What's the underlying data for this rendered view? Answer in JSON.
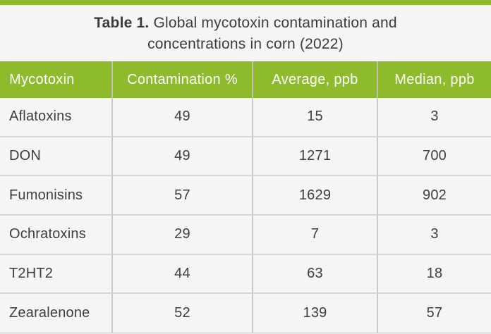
{
  "accent_color": "#8dbb2c",
  "title": {
    "prefix": "Table 1.",
    "line1_rest": " Global mycotoxin contamination and",
    "line2": "concentrations in corn (2022)"
  },
  "table": {
    "headers": [
      "Mycotoxin",
      "Contamination %",
      "Average, ppb",
      "Median, ppb"
    ],
    "rows": [
      {
        "name": "Aflatoxins",
        "contamination_pct": "49",
        "average_ppb": "15",
        "median_ppb": "3"
      },
      {
        "name": "DON",
        "contamination_pct": "49",
        "average_ppb": "1271",
        "median_ppb": "700"
      },
      {
        "name": "Fumonisins",
        "contamination_pct": "57",
        "average_ppb": "1629",
        "median_ppb": "902"
      },
      {
        "name": "Ochratoxins",
        "contamination_pct": "29",
        "average_ppb": "7",
        "median_ppb": "3"
      },
      {
        "name": "T2HT2",
        "contamination_pct": "44",
        "average_ppb": "63",
        "median_ppb": "18"
      },
      {
        "name": "Zearalenone",
        "contamination_pct": "52",
        "average_ppb": "139",
        "median_ppb": "57"
      }
    ]
  },
  "chart_data": {
    "type": "table",
    "title": "Table 1. Global mycotoxin contamination and concentrations in corn (2022)",
    "columns": [
      "Mycotoxin",
      "Contamination %",
      "Average, ppb",
      "Median, ppb"
    ],
    "rows": [
      [
        "Aflatoxins",
        49,
        15,
        3
      ],
      [
        "DON",
        49,
        1271,
        700
      ],
      [
        "Fumonisins",
        57,
        1629,
        902
      ],
      [
        "Ochratoxins",
        29,
        7,
        3
      ],
      [
        "T2HT2",
        44,
        63,
        18
      ],
      [
        "Zearalenone",
        52,
        139,
        57
      ]
    ]
  }
}
